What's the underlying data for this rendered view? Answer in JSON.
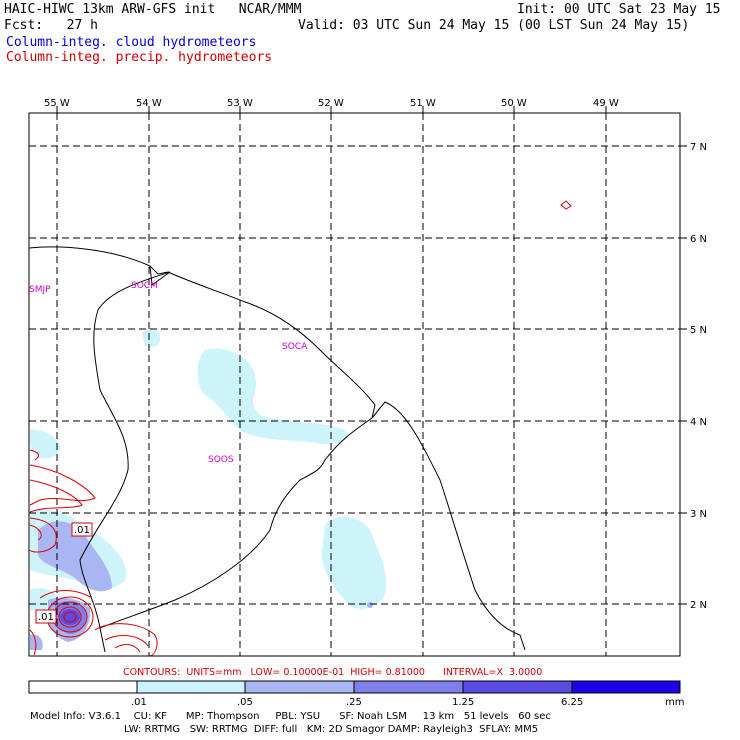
{
  "header": {
    "title_left": "HAIC-HIWC 13km ARW-GFS init   NCAR/MMM",
    "forecast": "Fcst:   27 h",
    "init": "Init: 00 UTC Sat 23 May 15",
    "valid": "Valid: 03 UTC Sun 24 May 15 (00 LST Sun 24 May 15)",
    "field_cloud": "Column-integ. cloud hydrometeors",
    "field_precip": "Column-integ. precip. hydrometeors"
  },
  "map": {
    "lon_labels": [
      "55 W",
      "54 W",
      "53 W",
      "52 W",
      "51 W",
      "50 W",
      "49 W"
    ],
    "lat_labels": [
      "7 N",
      "6 N",
      "5 N",
      "4 N",
      "3 N",
      "2 N"
    ],
    "stations": [
      "SMJP",
      "SOCM",
      "SOCA",
      "SOOS"
    ],
    "contour_labels": [
      ".01",
      ".01"
    ]
  },
  "footer": {
    "contours_line": "CONTOURS:  UNITS=mm   LOW= 0.10000E-01  HIGH= 0.81000      INTERVAL=X  3.0000",
    "colorbar_ticks": [
      ".01",
      ".05",
      ".25",
      "1.25",
      "6.25"
    ],
    "colorbar_unit": "mm",
    "colorbar_colors": [
      "#ffffff",
      "#cdf4fb",
      "#a9b6f2",
      "#7f80ea",
      "#5a4be2",
      "#1c00e6"
    ],
    "model_info_1": "Model Info: V3.6.1    CU: KF      MP: Thompson     PBL: YSU      SF: Noah LSM     13 km   51 levels   60 sec",
    "model_info_2": "LW: RRTMG   SW: RRTMG  DIFF: full   KM: 2D Smagor DAMP: Rayleigh3  SFLAY: MM5"
  }
}
